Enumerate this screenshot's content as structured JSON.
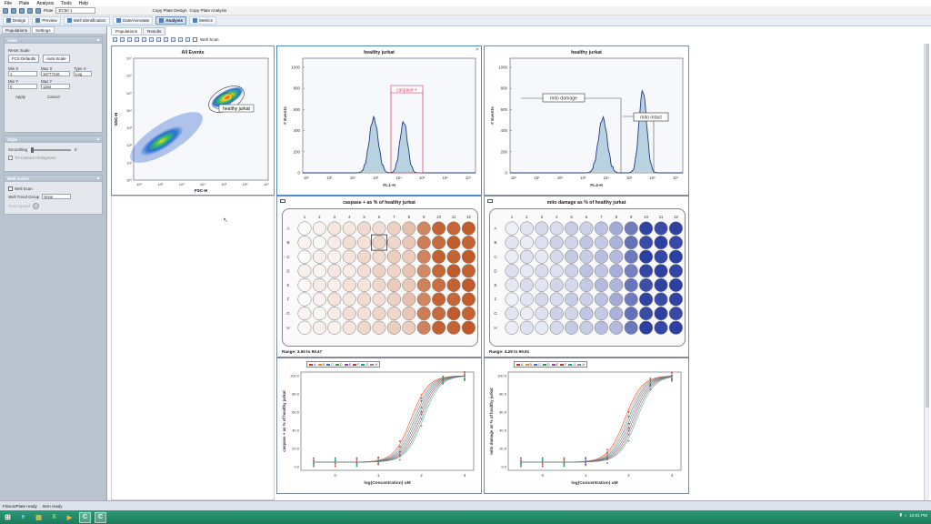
{
  "menu": [
    "File",
    "Plate",
    "Analysis",
    "Tools",
    "Help"
  ],
  "toolbar": {
    "plate_label": "Plate",
    "plate_value": "EC50 1",
    "copy_design": "Copy Plate Design",
    "copy_analysis": "Copy Plate Analysis"
  },
  "modes": [
    {
      "label": "Design",
      "active": false
    },
    {
      "label": "Preview",
      "active": false
    },
    {
      "label": "Well Identification",
      "active": false
    },
    {
      "label": "Gate/Annotate",
      "active": false
    },
    {
      "label": "Analysis",
      "active": true
    },
    {
      "label": "Metrics",
      "active": false
    }
  ],
  "left_panel": {
    "tabs": [
      "Populations",
      "Settings"
    ],
    "axes_section": {
      "title": "Axes",
      "reset_scale": "Reset Scale",
      "fcs_defaults": "FCS Defaults",
      "auto_scale": "Auto-Scale",
      "min_x_label": "Min X",
      "min_x": "1",
      "max_x_label": "Max X",
      "max_x": "16777216",
      "type_x_label": "Type X",
      "type_x": "Log",
      "min_y_label": "Min Y",
      "min_y": "0",
      "max_y_label": "Max Y",
      "max_y": "1184",
      "apply": "Apply",
      "cancel": "Cancel"
    },
    "style_section": {
      "title": "Style",
      "smoothing": "Smoothing",
      "smoothing_value": "0",
      "tri_contour": "Tri-Contour Histograms"
    },
    "well_section": {
      "title": "Well series",
      "well_scan": "Well Scan",
      "well_trend_group": "Well Trend Group",
      "none_option": "None",
      "speed_label": "Scan Speed"
    }
  },
  "content_tabs": [
    "Populations",
    "Results"
  ],
  "plot_toolbar": {
    "well_scan": "Well Scan"
  },
  "scatter": {
    "title": "All Events",
    "xlabel": "FSC-H",
    "ylabel": "SSC-H",
    "xticks": [
      "10¹",
      "10²",
      "10³",
      "10⁴",
      "10⁵",
      "10⁶",
      "10⁷"
    ],
    "yticks": [
      "10⁷",
      "10⁶",
      "10⁵",
      "10⁴",
      "10³",
      "10²",
      "10¹",
      "10⁰"
    ],
    "gate_label": "healthy jurkat"
  },
  "hist1": {
    "title": "healthy jurkat",
    "xlabel": "FL1-H",
    "ylabel": "# Events",
    "yticks": [
      "1000",
      "800",
      "600",
      "400",
      "200",
      "0"
    ],
    "xticks": [
      "10⁰",
      "10¹",
      "10²",
      "10³",
      "10⁴",
      "10⁵",
      "10⁶",
      "10⁷"
    ],
    "gate_label": "caspase +"
  },
  "hist2": {
    "title": "healthy jurkat",
    "xlabel": "FL4-H",
    "ylabel": "# Events",
    "yticks": [
      "1000",
      "800",
      "600",
      "400",
      "200",
      "0"
    ],
    "xticks": [
      "10⁰",
      "10¹",
      "10²",
      "10³",
      "10⁴",
      "10⁵",
      "10⁶",
      "10⁷"
    ],
    "gate1_label": "mito damage",
    "gate2_label": "mito intact"
  },
  "plate1": {
    "title": "caspase + as % of healthy jurkat",
    "range": "Range: 3.65 to 99.47",
    "base_color": "#c05a28",
    "levels": [
      0.05,
      0.08,
      0.12,
      0.16,
      0.2,
      0.24,
      0.28,
      0.34,
      0.75,
      0.92,
      0.96,
      0.98
    ]
  },
  "plate2": {
    "title": "mito damage as % of healthy jurkat",
    "range": "Range: 4.28 to 99.91",
    "base_color": "#2d3fa0",
    "levels": [
      0.12,
      0.14,
      0.16,
      0.2,
      0.24,
      0.28,
      0.32,
      0.4,
      0.7,
      0.96,
      0.98,
      0.99
    ]
  },
  "plate_cols": [
    "1",
    "2",
    "3",
    "4",
    "5",
    "6",
    "7",
    "8",
    "9",
    "10",
    "11",
    "12"
  ],
  "plate_rows": [
    "A",
    "B",
    "C",
    "D",
    "E",
    "F",
    "G",
    "H"
  ],
  "curve1": {
    "xlabel": "log(Concentration) uM",
    "ylabel": "caspase + as % of healthy jurkat",
    "yticks": [
      "100.0",
      "80.0",
      "60.0",
      "40.0",
      "20.0",
      "0.0"
    ],
    "xticks": [
      "0",
      "1",
      "2",
      "3"
    ],
    "legend": [
      "A",
      "B",
      "C",
      "D",
      "E",
      "F",
      "G",
      "H"
    ],
    "legend_colors": [
      "#cc3333",
      "#e28a2a",
      "#3a6fc4",
      "#2a9a4a",
      "#8e44ad",
      "#c0392b",
      "#16a085",
      "#7f8c8d"
    ]
  },
  "curve2": {
    "xlabel": "log(Concentration) uM",
    "ylabel": "mito damage as % of healthy jurkat",
    "yticks": [
      "100.0",
      "80.0",
      "60.0",
      "40.0",
      "20.0",
      "0.0"
    ],
    "xticks": [
      "0",
      "1",
      "2",
      "3"
    ],
    "legend": [
      "A",
      "B",
      "C",
      "D",
      "E",
      "F",
      "G",
      "H"
    ],
    "legend_colors": [
      "#cc3333",
      "#e28a2a",
      "#3a6fc4",
      "#2a9a4a",
      "#8e44ad",
      "#c0392b",
      "#16a085",
      "#7f8c8d"
    ]
  },
  "status": {
    "left": "FlowJoPlate ready",
    "right": "Item ready"
  },
  "tray": {
    "time": "12:01 PM"
  },
  "taskbar": [
    "ie",
    "explorer",
    "excel",
    "media",
    "app-c1",
    "app-c2"
  ]
}
